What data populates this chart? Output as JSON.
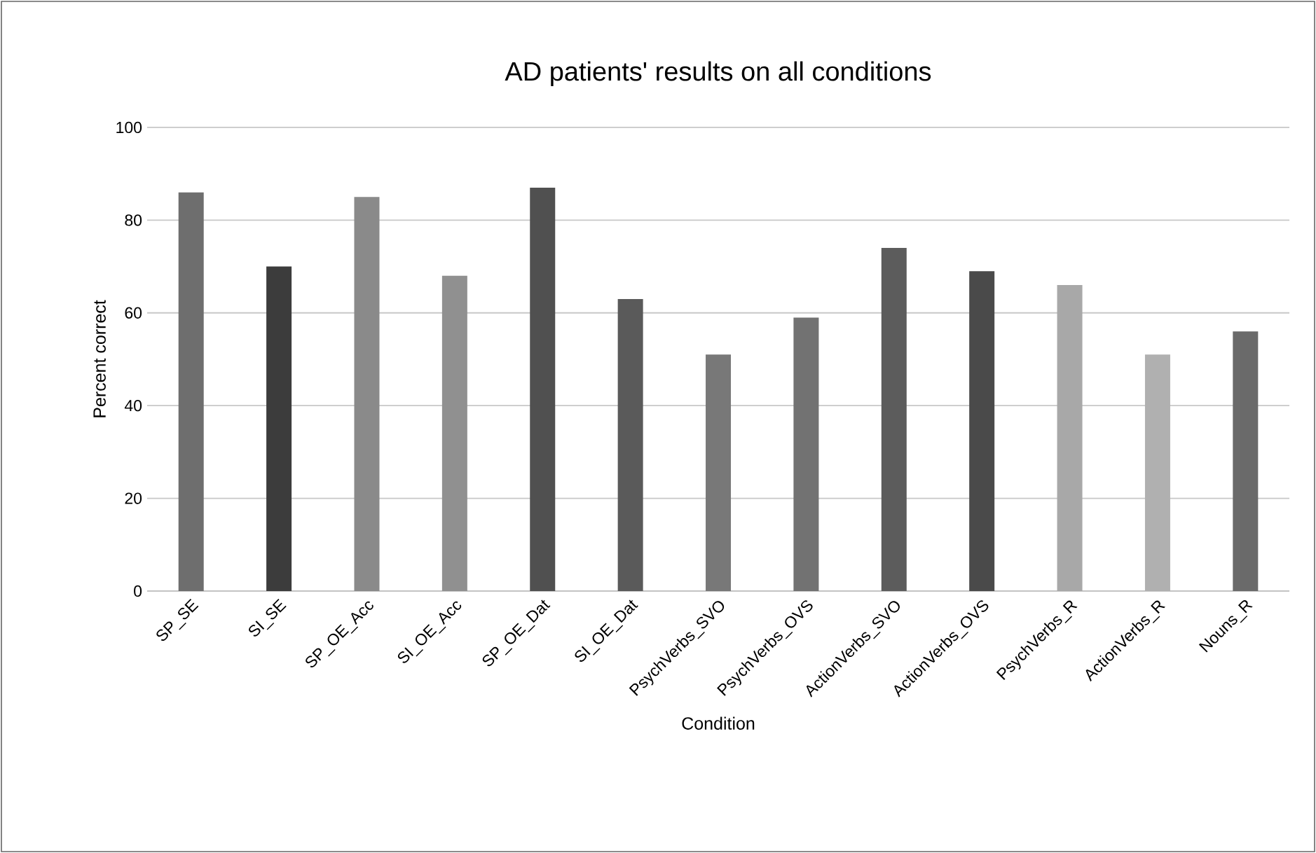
{
  "chart_data": {
    "type": "bar",
    "title": "AD patients' results on all conditions",
    "xlabel": "Condition",
    "ylabel": "Percent  correct",
    "categories": [
      "SP_SE",
      "SI_SE",
      "SP_OE_Acc",
      "SI_OE_Acc",
      "SP_OE_Dat",
      "SI_OE_Dat",
      "PsychVerbs_SVO",
      "PsychVerbs_OVS",
      "ActionVerbs_SVO",
      "ActionVerbs_OVS",
      "PsychVerbs_R",
      "ActionVerbs_R",
      "Nouns_R"
    ],
    "values": [
      86,
      70,
      85,
      68,
      87,
      63,
      51,
      59,
      74,
      69,
      66,
      51,
      56
    ],
    "colors": [
      "#6e6e6e",
      "#3c3c3c",
      "#8a8a8a",
      "#909090",
      "#505050",
      "#5a5a5a",
      "#787878",
      "#727272",
      "#5c5c5c",
      "#4a4a4a",
      "#a8a8a8",
      "#b0b0b0",
      "#6a6a6a"
    ],
    "ylim": [
      0,
      100
    ],
    "yticks": [
      0,
      20,
      40,
      60,
      80,
      100
    ],
    "grid": "y"
  }
}
